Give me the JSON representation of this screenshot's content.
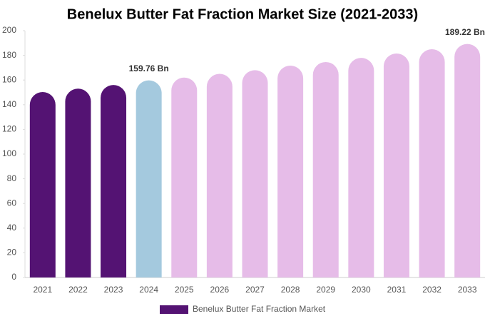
{
  "chart_data": {
    "type": "bar",
    "title": "Benelux Butter Fat Fraction Market Size (2021-2033)",
    "categories": [
      "2021",
      "2022",
      "2023",
      "2024",
      "2025",
      "2026",
      "2027",
      "2028",
      "2029",
      "2030",
      "2031",
      "2032",
      "2033"
    ],
    "series": [
      {
        "name": "Benelux Butter Fat Fraction Market",
        "color": "#541373",
        "colors": [
          "#541373",
          "#541373",
          "#541373",
          "#a4c9de",
          "#e6bce8",
          "#e6bce8",
          "#e6bce8",
          "#e6bce8",
          "#e6bce8",
          "#e6bce8",
          "#e6bce8",
          "#e6bce8",
          "#e6bce8"
        ],
        "values": [
          150.3,
          153,
          156,
          159.76,
          162,
          165,
          168,
          171.7,
          174.6,
          178,
          181.5,
          185,
          189.22
        ],
        "value_labels": [
          null,
          null,
          null,
          "159.76 Bn",
          null,
          null,
          null,
          null,
          null,
          null,
          null,
          null,
          "189.22 Bn"
        ]
      }
    ],
    "ylim": [
      0,
      200
    ],
    "yticks": [
      0,
      20,
      40,
      60,
      80,
      100,
      120,
      140,
      160,
      180,
      200
    ],
    "grid": false
  }
}
